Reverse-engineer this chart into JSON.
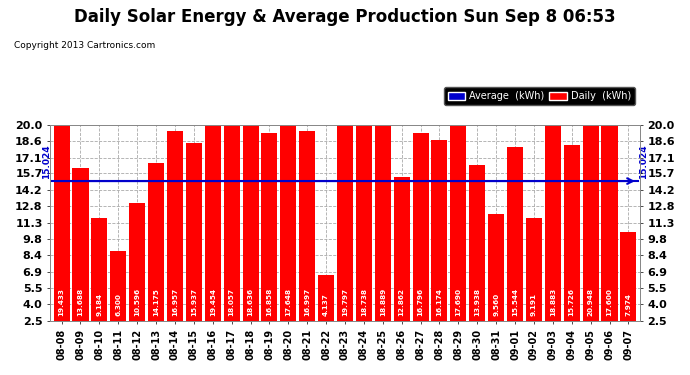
{
  "title": "Daily Solar Energy & Average Production Sun Sep 8 06:53",
  "copyright": "Copyright 2013 Cartronics.com",
  "average_label": "15.024",
  "average_value": 15.024,
  "bar_color": "#ff0000",
  "average_line_color": "#0000cc",
  "background_color": "#ffffff",
  "plot_bg_color": "#ffffff",
  "grid_color": "#aaaaaa",
  "categories": [
    "08-08",
    "08-09",
    "08-10",
    "08-11",
    "08-12",
    "08-13",
    "08-14",
    "08-15",
    "08-16",
    "08-17",
    "08-18",
    "08-19",
    "08-20",
    "08-21",
    "08-22",
    "08-23",
    "08-24",
    "08-25",
    "08-26",
    "08-27",
    "08-28",
    "08-29",
    "08-30",
    "08-31",
    "09-01",
    "09-02",
    "09-03",
    "09-04",
    "09-05",
    "09-06",
    "09-07"
  ],
  "values": [
    19.433,
    13.688,
    9.184,
    6.3,
    10.596,
    14.175,
    16.957,
    15.937,
    19.454,
    18.057,
    18.636,
    16.858,
    17.648,
    16.997,
    4.137,
    19.797,
    18.738,
    18.889,
    12.862,
    16.796,
    16.174,
    17.69,
    13.938,
    9.56,
    15.544,
    9.191,
    18.883,
    15.726,
    20.948,
    17.6,
    7.974
  ],
  "ylim": [
    2.5,
    20.0
  ],
  "yticks": [
    2.5,
    4.0,
    5.5,
    6.9,
    8.4,
    9.8,
    11.3,
    12.8,
    14.2,
    15.7,
    17.1,
    18.6,
    20.0
  ],
  "title_fontsize": 12,
  "tick_fontsize": 7,
  "bar_label_fontsize": 5.2,
  "avg_label_fontsize": 6.5,
  "copyright_fontsize": 6.5
}
